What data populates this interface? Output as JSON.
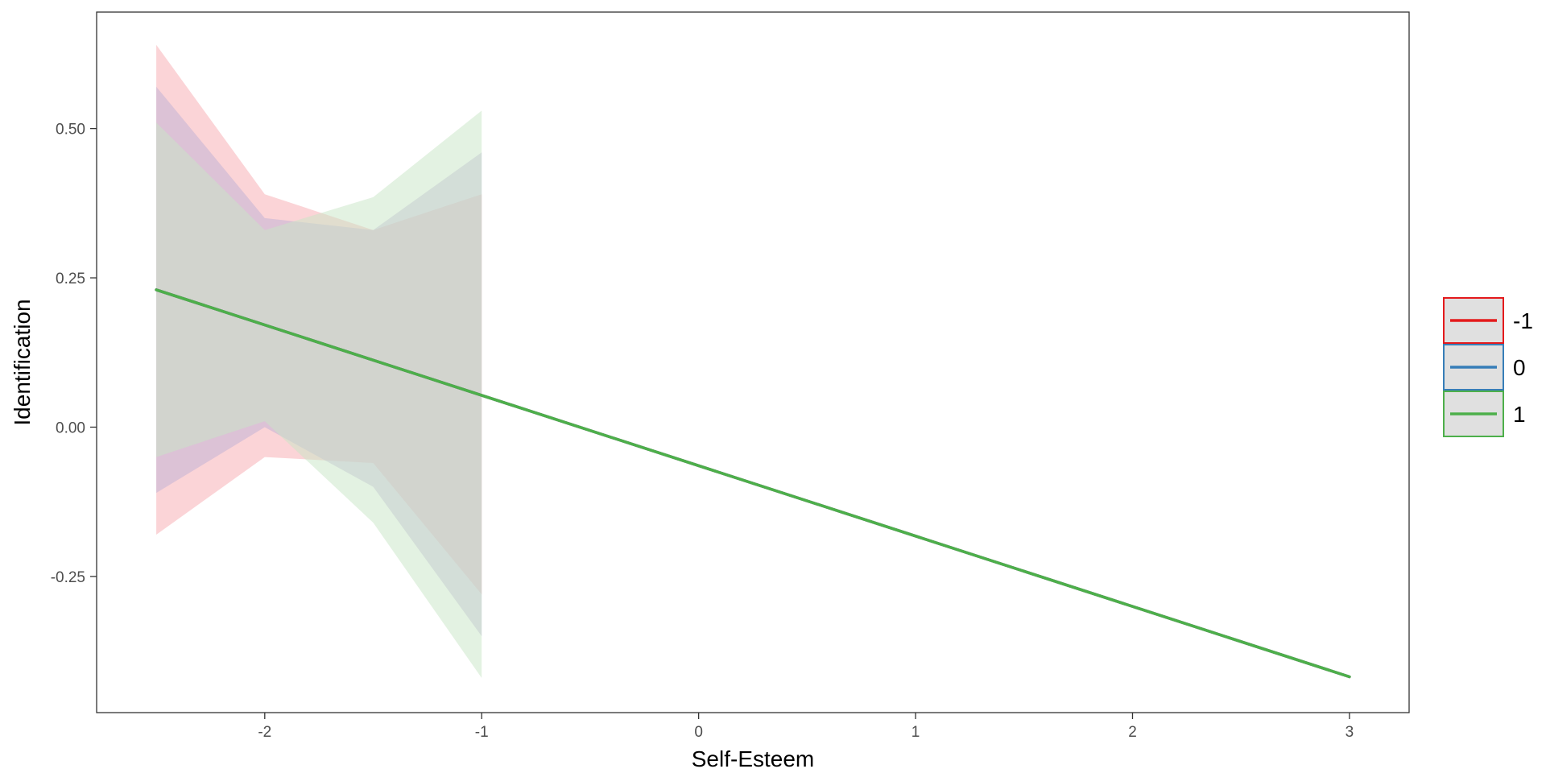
{
  "chart_data": {
    "type": "line",
    "title": "",
    "xlabel": "Self-Esteem",
    "ylabel": "Identification",
    "xlim": [
      -2.775,
      3.275
    ],
    "ylim": [
      -0.478,
      0.695
    ],
    "x_ticks": [
      -2,
      -1,
      0,
      1,
      2,
      3
    ],
    "x_tick_labels": [
      "-2",
      "-1",
      "0",
      "1",
      "2",
      "3"
    ],
    "y_ticks": [
      -0.25,
      0,
      0.25,
      0.5
    ],
    "y_tick_labels": [
      "-0.25",
      "0.00",
      "0.25",
      "0.50"
    ],
    "grid": false,
    "legend_position": "right",
    "series": [
      {
        "name": "-1",
        "color": "#E41A1C",
        "band_color": "#F8A9B0",
        "line": {
          "x": [
            -2.5,
            3
          ],
          "y": [
            0.23,
            -0.418
          ]
        },
        "ribbon": {
          "x": [
            -2.5,
            -2,
            -1.5,
            -1
          ],
          "upper": [
            0.64,
            0.39,
            0.33,
            0.39
          ],
          "lower": [
            -0.18,
            -0.05,
            -0.06,
            -0.28
          ]
        }
      },
      {
        "name": "0",
        "color": "#377EB8",
        "band_color": "#BDB0D6",
        "line": {
          "x": [
            -2.5,
            3
          ],
          "y": [
            0.23,
            -0.418
          ]
        },
        "ribbon": {
          "x": [
            -2.5,
            -2,
            -1.5,
            -1
          ],
          "upper": [
            0.57,
            0.35,
            0.33,
            0.46
          ],
          "lower": [
            -0.11,
            0.0,
            -0.1,
            -0.35
          ]
        }
      },
      {
        "name": "1",
        "color": "#4DAF4A",
        "band_color": "#C7E6C6",
        "line": {
          "x": [
            -2.5,
            3
          ],
          "y": [
            0.23,
            -0.418
          ]
        },
        "ribbon": {
          "x": [
            -2.5,
            -2,
            -1.5,
            -1
          ],
          "upper": [
            0.51,
            0.33,
            0.385,
            0.53
          ],
          "lower": [
            -0.05,
            0.01,
            -0.16,
            -0.42
          ]
        }
      }
    ]
  }
}
